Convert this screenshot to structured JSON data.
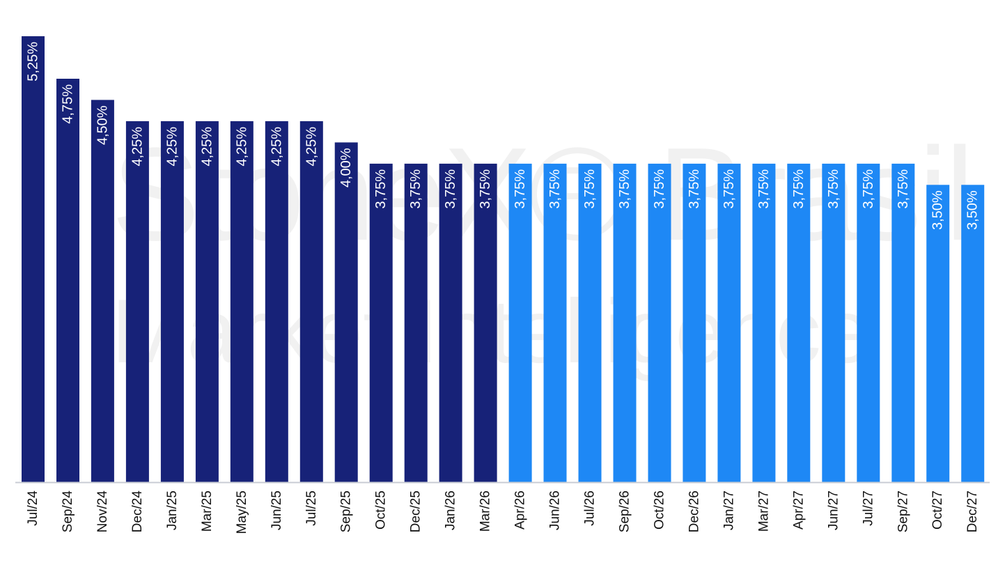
{
  "watermark": {
    "line1": "StoneX® Brasil",
    "line2": "Market Intelligence"
  },
  "colors": {
    "actual": "#172278",
    "forecast": "#1e88f5",
    "axis": "#c8ccd4",
    "label_text": "#ffffff",
    "tick_text": "#111111"
  },
  "chart_data": {
    "type": "bar",
    "title": "",
    "xlabel": "",
    "ylabel": "",
    "ylim": [
      0,
      5.25
    ],
    "grid": false,
    "legend": "none",
    "categories": [
      "Jul/24",
      "Sep/24",
      "Nov/24",
      "Dec/24",
      "Jan/25",
      "Mar/25",
      "May/25",
      "Jun/25",
      "Jul/25",
      "Sep/25",
      "Oct/25",
      "Dec/25",
      "Jan/26",
      "Mar/26",
      "Apr/26",
      "Jun/26",
      "Jul/26",
      "Sep/26",
      "Oct/26",
      "Dec/26",
      "Jan/27",
      "Mar/27",
      "Apr/27",
      "Jun/27",
      "Jul/27",
      "Sep/27",
      "Oct/27",
      "Dec/27"
    ],
    "values": [
      5.25,
      4.75,
      4.5,
      4.25,
      4.25,
      4.25,
      4.25,
      4.25,
      4.25,
      4.0,
      3.75,
      3.75,
      3.75,
      3.75,
      3.75,
      3.75,
      3.75,
      3.75,
      3.75,
      3.75,
      3.75,
      3.75,
      3.75,
      3.75,
      3.75,
      3.75,
      3.5,
      3.5
    ],
    "labels": [
      "5,25%",
      "4,75%",
      "4,50%",
      "4,25%",
      "4,25%",
      "4,25%",
      "4,25%",
      "4,25%",
      "4,25%",
      "4,00%",
      "3,75%",
      "3,75%",
      "3,75%",
      "3,75%",
      "3,75%",
      "3,75%",
      "3,75%",
      "3,75%",
      "3,75%",
      "3,75%",
      "3,75%",
      "3,75%",
      "3,75%",
      "3,75%",
      "3,75%",
      "3,75%",
      "3,50%",
      "3,50%"
    ],
    "series_type": [
      "actual",
      "actual",
      "actual",
      "actual",
      "actual",
      "actual",
      "actual",
      "actual",
      "actual",
      "actual",
      "actual",
      "actual",
      "actual",
      "actual",
      "forecast",
      "forecast",
      "forecast",
      "forecast",
      "forecast",
      "forecast",
      "forecast",
      "forecast",
      "forecast",
      "forecast",
      "forecast",
      "forecast",
      "forecast",
      "forecast"
    ]
  }
}
